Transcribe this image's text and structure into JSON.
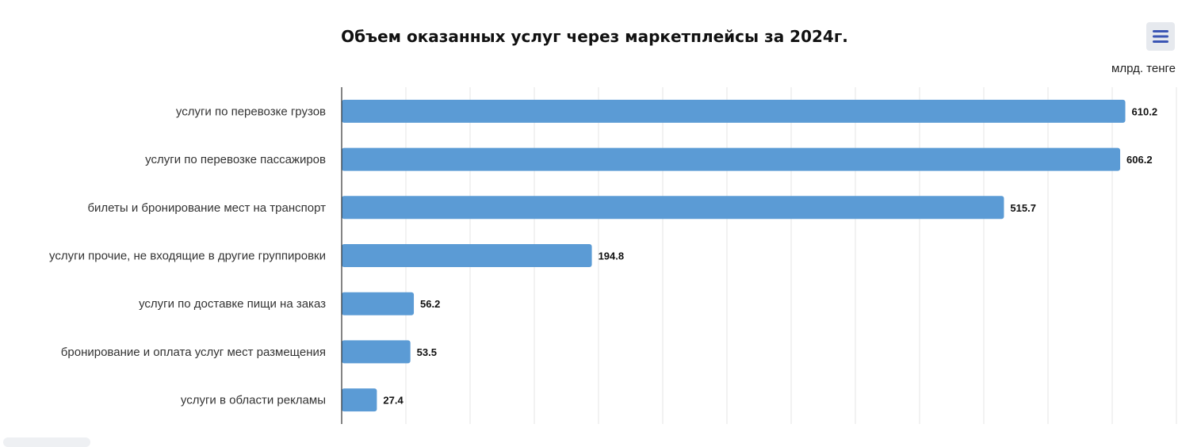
{
  "colors": {
    "bar": "#5b9bd5",
    "menu_icon": "#3a55b4",
    "menu_bg": "#e6e9ee"
  },
  "toolbar": {
    "menu_icon": "hamburger-menu-icon"
  },
  "chart_data": {
    "type": "bar",
    "orientation": "horizontal",
    "title": "Объем оказанных услуг через маркетплейсы за 2024г.",
    "unit": "млрд. тенге",
    "categories": [
      "услуги по перевозке грузов",
      "услуги по перевозке пассажиров",
      "билеты и бронирование мест на транспорт",
      "услуги прочие, не входящие в другие группировки",
      "услуги по доставке пищи на заказ",
      "бронирование и оплата услуг мест размещения",
      "услуги в области рекламы"
    ],
    "values": [
      610.2,
      606.2,
      515.7,
      194.8,
      56.2,
      53.5,
      27.4
    ],
    "value_labels": [
      "610.2",
      "606.2",
      "515.7",
      "194.8",
      "56.2",
      "53.5",
      "27.4"
    ],
    "xlim": [
      0,
      650
    ],
    "grid_step": 50,
    "grid": true,
    "legend": "none",
    "x_tick_labels_visible": false
  }
}
